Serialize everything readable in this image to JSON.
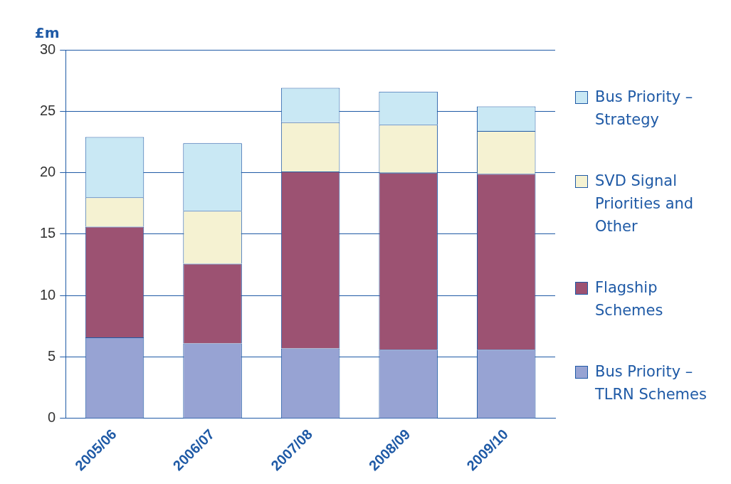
{
  "chart_data": {
    "type": "bar",
    "ylabel": "£m",
    "stacked": true,
    "categories": [
      "2005/06",
      "2006/07",
      "2007/08",
      "2008/09",
      "2009/10"
    ],
    "series": [
      {
        "name": "Bus Priority – TLRN Schemes",
        "color": "#97a3d3",
        "values": [
          6.6,
          6.1,
          5.7,
          5.6,
          5.6
        ]
      },
      {
        "name": "Flagship Schemes",
        "color": "#9c5272",
        "values": [
          9.0,
          6.5,
          14.4,
          14.4,
          14.3
        ]
      },
      {
        "name": "SVD Signal Priorities and Other",
        "color": "#f5f2d2",
        "values": [
          2.4,
          4.3,
          4.0,
          3.9,
          3.5
        ]
      },
      {
        "name": "Bus Priority – Strategy",
        "color": "#c9e8f4",
        "values": [
          4.9,
          5.5,
          2.8,
          2.7,
          2.0
        ]
      }
    ],
    "ylim": [
      0,
      30
    ],
    "yticks": [
      0,
      5,
      10,
      15,
      20,
      25,
      30
    ],
    "grid": "y",
    "legend": "right"
  }
}
